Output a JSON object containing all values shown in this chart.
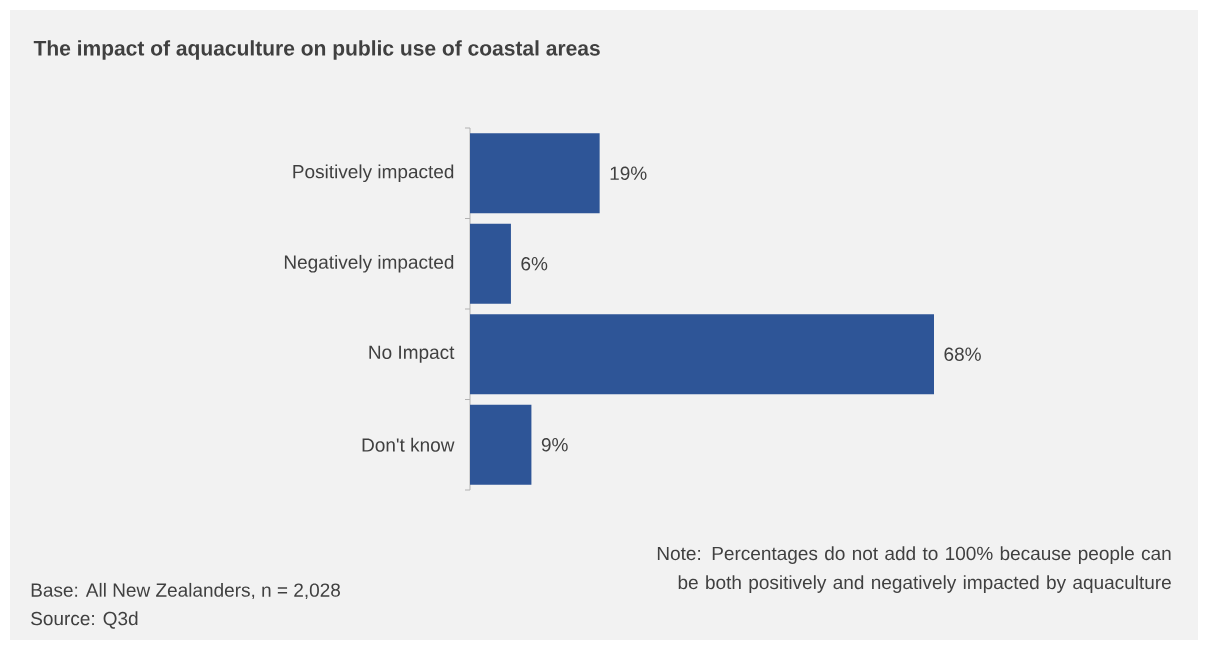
{
  "chart_data": {
    "type": "bar",
    "orientation": "horizontal",
    "title": "The impact of aquaculture on public use of coastal areas",
    "categories": [
      "Positively impacted",
      "Negatively impacted",
      "No Impact",
      "Don't know"
    ],
    "values": [
      19,
      6,
      68,
      9
    ],
    "value_labels": [
      "19%",
      "6%",
      "68%",
      "9%"
    ],
    "color": "#2e5597",
    "grid": false,
    "annotations": [
      "Base: All New Zealanders, n = 2,028",
      "Source: Q3d",
      "Note: Percentages do not add to 100% because people can be both positively and negatively impacted by aquaculture"
    ]
  }
}
